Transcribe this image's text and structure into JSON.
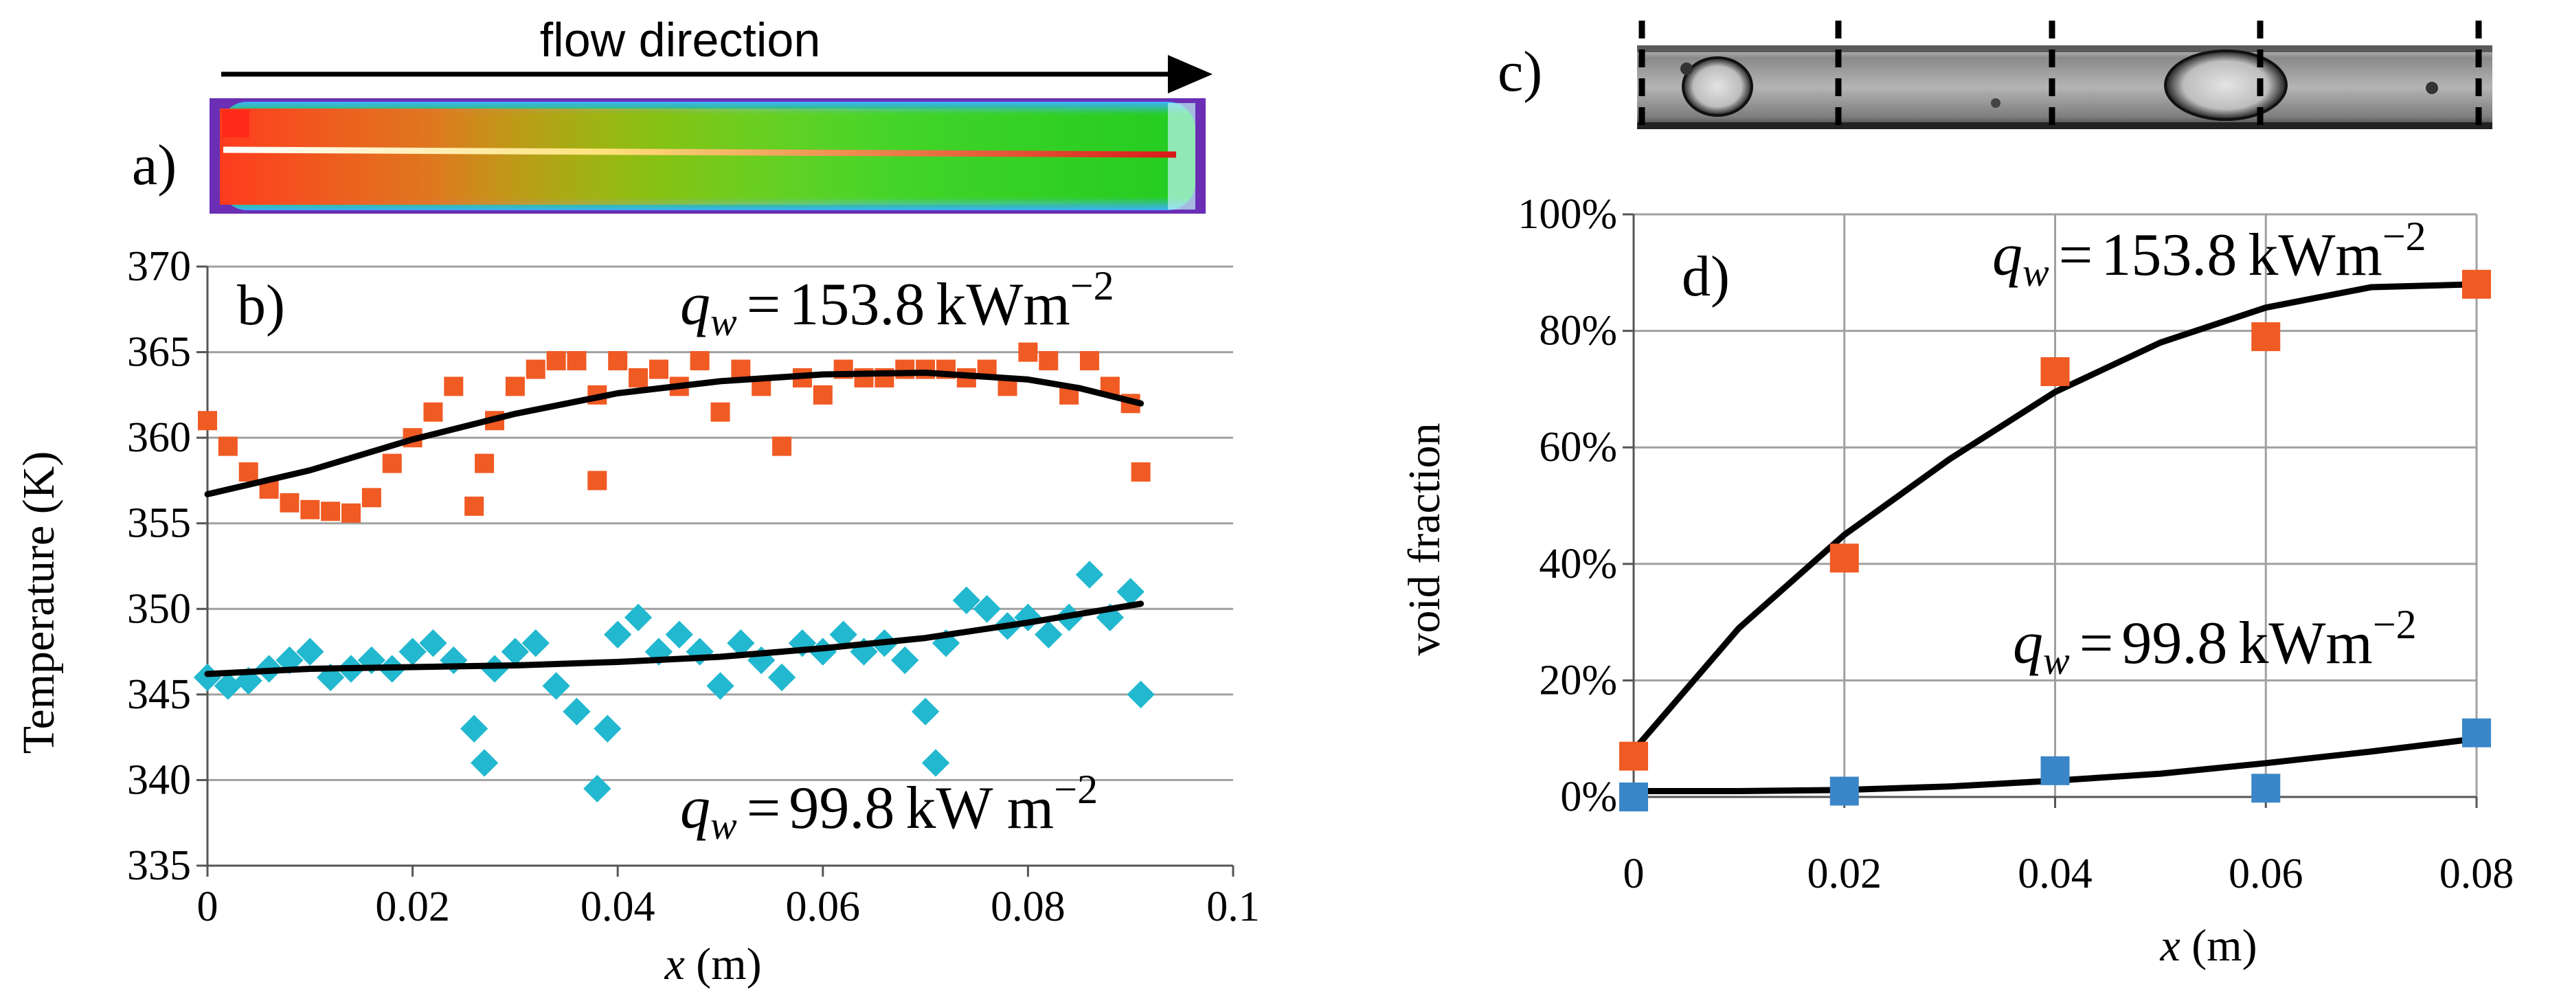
{
  "panels": {
    "a": {
      "letter": "a)",
      "caption": "flow direction"
    },
    "c": {
      "letter": "c)"
    }
  },
  "colors": {
    "high_flux": "#f05a23",
    "low_flux_b": "#22b8cf",
    "low_flux_d": "#3a86c8",
    "fit": "#000000",
    "grid": "#a0a0a0"
  },
  "chart_data": [
    {
      "id": "b",
      "type": "scatter",
      "panel_label": "b)",
      "title": "",
      "xlabel": "x (m)",
      "ylabel": "Temperature (K)",
      "xlim": [
        0,
        0.1
      ],
      "ylim": [
        335,
        370
      ],
      "x_ticks": [
        0,
        0.02,
        0.04,
        0.06,
        0.08,
        0.1
      ],
      "x_tick_labels": [
        "0",
        "0.02",
        "0.04",
        "0.06",
        "0.08",
        "0.1"
      ],
      "y_ticks": [
        335,
        340,
        345,
        350,
        355,
        360,
        365,
        370
      ],
      "y_tick_labels": [
        "335",
        "340",
        "345",
        "350",
        "355",
        "360",
        "365",
        "370"
      ],
      "grid": "horizontal",
      "annotations": [
        {
          "series": "high",
          "lhs": "q",
          "sub": "w",
          "eq": "=",
          "value": "153.8",
          "unit": "kWm",
          "exp": "−2"
        },
        {
          "series": "low",
          "lhs": "q",
          "sub": "w",
          "eq": "=",
          "value": "99.8",
          "unit": "kW m",
          "exp": "−2"
        }
      ],
      "series": [
        {
          "key": "high",
          "marker": "square",
          "x": [
            0,
            0.002,
            0.004,
            0.006,
            0.008,
            0.01,
            0.012,
            0.014,
            0.016,
            0.018,
            0.02,
            0.022,
            0.024,
            0.026,
            0.027,
            0.028,
            0.03,
            0.032,
            0.034,
            0.036,
            0.038,
            0.038,
            0.04,
            0.042,
            0.044,
            0.046,
            0.048,
            0.05,
            0.052,
            0.054,
            0.056,
            0.058,
            0.06,
            0.062,
            0.064,
            0.066,
            0.068,
            0.07,
            0.072,
            0.074,
            0.076,
            0.078,
            0.08,
            0.082,
            0.084,
            0.086,
            0.088,
            0.09,
            0.091
          ],
          "y": [
            361,
            359.5,
            358,
            357,
            356.2,
            355.8,
            355.7,
            355.6,
            356.5,
            358.5,
            360,
            361.5,
            363,
            356,
            358.5,
            361,
            363,
            364,
            364.5,
            364.5,
            357.5,
            362.5,
            364.5,
            363.5,
            364,
            363,
            364.5,
            361.5,
            364,
            363,
            359.5,
            363.5,
            362.5,
            364,
            363.5,
            363.5,
            364,
            364,
            364,
            363.5,
            364,
            363,
            365,
            364.5,
            362.5,
            364.5,
            363,
            362,
            358
          ]
        },
        {
          "key": "low",
          "marker": "diamond",
          "x": [
            0,
            0.002,
            0.004,
            0.006,
            0.008,
            0.01,
            0.012,
            0.014,
            0.016,
            0.018,
            0.02,
            0.022,
            0.024,
            0.026,
            0.027,
            0.028,
            0.03,
            0.032,
            0.034,
            0.036,
            0.038,
            0.039,
            0.04,
            0.042,
            0.044,
            0.046,
            0.048,
            0.05,
            0.052,
            0.054,
            0.056,
            0.058,
            0.06,
            0.062,
            0.064,
            0.066,
            0.068,
            0.07,
            0.071,
            0.072,
            0.074,
            0.076,
            0.078,
            0.08,
            0.082,
            0.084,
            0.086,
            0.088,
            0.09,
            0.091
          ],
          "y": [
            346,
            345.5,
            345.8,
            346.5,
            347,
            347.5,
            346,
            346.5,
            347,
            346.5,
            347.5,
            348,
            347,
            343,
            341,
            346.5,
            347.5,
            348,
            345.5,
            344,
            339.5,
            343,
            348.5,
            349.5,
            347.5,
            348.5,
            347.5,
            345.5,
            348,
            347,
            346,
            348,
            347.5,
            348.5,
            347.5,
            348,
            347,
            344,
            341,
            348,
            350.5,
            350,
            349,
            349.5,
            348.5,
            349.5,
            352,
            349.5,
            351,
            345
          ]
        },
        {
          "key": "high_fit",
          "marker": "line",
          "x": [
            0,
            0.01,
            0.02,
            0.03,
            0.04,
            0.05,
            0.06,
            0.07,
            0.08,
            0.085,
            0.091
          ],
          "y": [
            356.7,
            358.1,
            359.9,
            361.4,
            362.6,
            363.3,
            363.7,
            363.8,
            363.4,
            362.9,
            362
          ]
        },
        {
          "key": "low_fit",
          "marker": "line",
          "x": [
            0,
            0.01,
            0.02,
            0.03,
            0.04,
            0.05,
            0.06,
            0.07,
            0.08,
            0.091
          ],
          "y": [
            346.2,
            346.5,
            346.6,
            346.7,
            346.9,
            347.2,
            347.7,
            348.3,
            349.2,
            350.3
          ]
        }
      ]
    },
    {
      "id": "d",
      "type": "scatter",
      "panel_label": "d)",
      "title": "",
      "xlabel": "x (m)",
      "ylabel": "void fraction",
      "xlim": [
        0,
        0.08
      ],
      "ylim": [
        0,
        100
      ],
      "x_ticks": [
        0,
        0.02,
        0.04,
        0.06,
        0.08
      ],
      "x_tick_labels": [
        "0",
        "0.02",
        "0.04",
        "0.06",
        "0.08"
      ],
      "y_ticks": [
        0,
        20,
        40,
        60,
        80,
        100
      ],
      "y_tick_labels": [
        "0%",
        "20%",
        "40%",
        "60%",
        "80%",
        "100%"
      ],
      "grid": "both",
      "annotations": [
        {
          "series": "high",
          "lhs": "q",
          "sub": "w",
          "eq": "=",
          "value": "153.8",
          "unit": "kWm",
          "exp": "−2"
        },
        {
          "series": "low",
          "lhs": "q",
          "sub": "w",
          "eq": "=",
          "value": "99.8",
          "unit": "kWm",
          "exp": "−2"
        }
      ],
      "series": [
        {
          "key": "high",
          "marker": "square",
          "x": [
            0,
            0.02,
            0.04,
            0.06,
            0.08
          ],
          "y": [
            7,
            41,
            73,
            79,
            88
          ]
        },
        {
          "key": "low",
          "marker": "square",
          "x": [
            0,
            0.02,
            0.04,
            0.06,
            0.08
          ],
          "y": [
            0,
            1,
            4.5,
            1.5,
            11
          ]
        },
        {
          "key": "high_fit",
          "marker": "line",
          "x": [
            0,
            0.01,
            0.02,
            0.03,
            0.04,
            0.05,
            0.06,
            0.07,
            0.08
          ],
          "y": [
            8,
            29,
            45,
            58,
            69.5,
            78,
            84,
            87.5,
            88
          ]
        },
        {
          "key": "low_fit",
          "marker": "line",
          "x": [
            0,
            0.01,
            0.02,
            0.03,
            0.04,
            0.05,
            0.06,
            0.07,
            0.08
          ],
          "y": [
            1,
            1,
            1.2,
            1.8,
            2.8,
            4,
            5.8,
            7.8,
            10
          ]
        }
      ]
    }
  ]
}
